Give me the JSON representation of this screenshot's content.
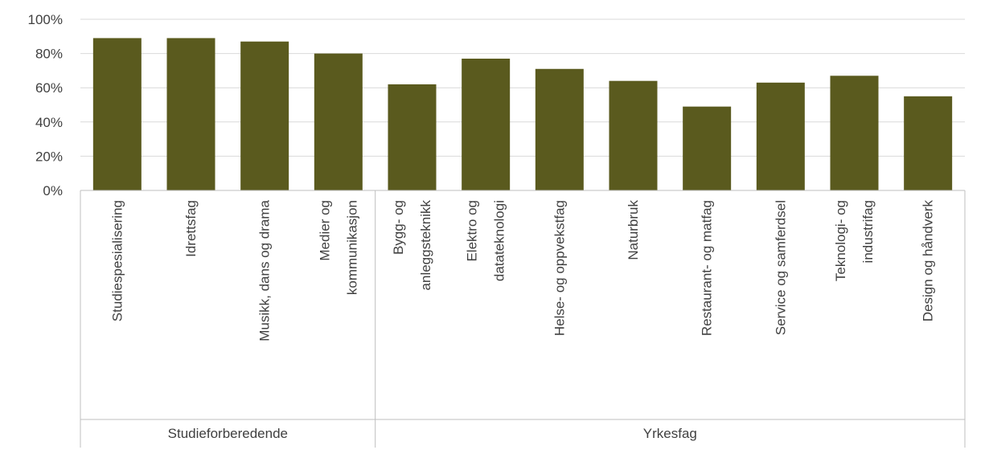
{
  "chart_data": {
    "type": "bar",
    "title": "",
    "xlabel": "",
    "ylabel": "",
    "ylim": [
      0,
      100
    ],
    "yticks": [
      0,
      20,
      40,
      60,
      80,
      100
    ],
    "ytick_suffix": "%",
    "grid": true,
    "bar_color": "#5a5a1e",
    "categories": [
      [
        "Studiespesialisering"
      ],
      [
        "Idrettsfag"
      ],
      [
        "Musikk, dans og drama"
      ],
      [
        "Medier og",
        "kommunikasjon"
      ],
      [
        "Bygg- og",
        "anleggsteknikk"
      ],
      [
        "Elektro og",
        "datateknologi"
      ],
      [
        "Helse- og oppvekstfag"
      ],
      [
        "Naturbruk"
      ],
      [
        "Restaurant- og matfag"
      ],
      [
        "Service og samferdsel"
      ],
      [
        "Teknologi- og",
        "industrifag"
      ],
      [
        "Design og håndverk"
      ]
    ],
    "values": [
      89,
      89,
      87,
      80,
      62,
      77,
      71,
      64,
      49,
      63,
      67,
      55
    ],
    "groups": [
      {
        "label": "Studieforberedende",
        "start": 0,
        "count": 4
      },
      {
        "label": "Yrkesfag",
        "start": 4,
        "count": 8
      }
    ]
  }
}
